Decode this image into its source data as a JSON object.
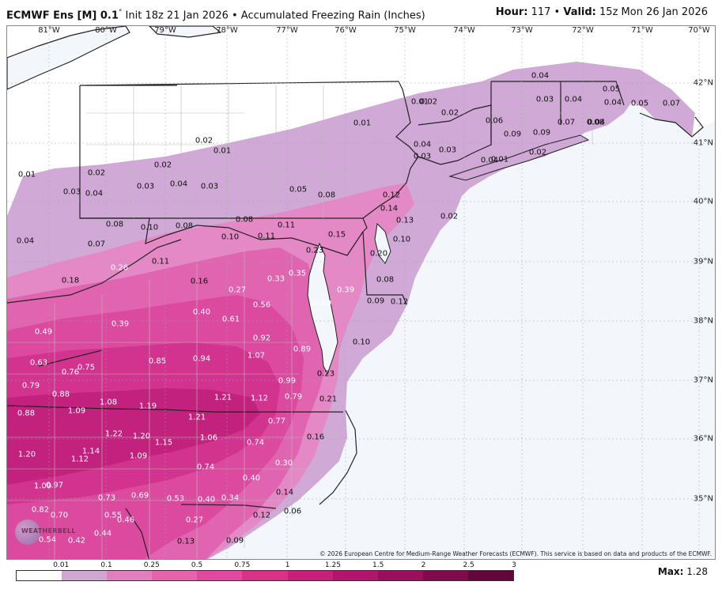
{
  "header": {
    "model": "ECMWF Ens [M] 0.1",
    "degree": "°",
    "init_text": " Init 18z 21 Jan 2026 • Accumulated Freezing Rain (Inches)",
    "hour_label": "Hour:",
    "hour_value": " 117 • ",
    "valid_label": "Valid:",
    "valid_value": " 15z Mon 26 Jan 2026"
  },
  "longitude_labels": [
    "81°W",
    "80°W",
    "79°W",
    "78°W",
    "77°W",
    "76°W",
    "75°W",
    "74°W",
    "73°W",
    "72°W",
    "71°W",
    "70°W"
  ],
  "latitude_labels": [
    "42°N",
    "41°N",
    "40°N",
    "39°N",
    "38°N",
    "37°N",
    "36°N",
    "35°N"
  ],
  "values": [
    "0.01",
    "0.02",
    "0.03",
    "0.04",
    "0.02",
    "0.02",
    "0.01",
    "0.03",
    "0.04",
    "0.03",
    "0.04",
    "0.03",
    "0.04",
    "0.05",
    "0.04",
    "0.05",
    "0.07",
    "0.06",
    "0.09",
    "0.09",
    "0.07",
    "0.08",
    "0.02",
    "0.01",
    "0.01",
    "0.02",
    "0.02",
    "0.04",
    "0.04",
    "0.03",
    "0.05",
    "0.08",
    "0.12",
    "0.14",
    "0.13",
    "0.02",
    "0.01",
    "0.03",
    "0.04",
    "0.08",
    "0.10",
    "0.08",
    "0.08",
    "0.11",
    "0.10",
    "0.11",
    "0.15",
    "0.23",
    "0.10",
    "0.20",
    "0.07",
    "0.04",
    "0.11",
    "0.26",
    "0.16",
    "0.35",
    "0.33",
    "0.39",
    "0.18",
    "0.27",
    "0.56",
    "0.60",
    "0.08",
    "0.09",
    "0.12",
    "0.49",
    "0.39",
    "0.40",
    "0.61",
    "0.92",
    "0.89",
    "0.10",
    "0.63",
    "0.76",
    "0.75",
    "0.85",
    "0.94",
    "1.07",
    "0.23",
    "0.79",
    "0.88",
    "0.99",
    "1.08",
    "1.19",
    "1.21",
    "1.12",
    "0.79",
    "0.21",
    "0.88",
    "1.09",
    "1.21",
    "0.77",
    "1.22",
    "1.20",
    "1.06",
    "0.74",
    "0.16",
    "1.20",
    "1.14",
    "1.12",
    "1.15",
    "1.09",
    "0.74",
    "0.30",
    "1.00",
    "0.97",
    "0.40",
    "0.73",
    "0.69",
    "0.53",
    "0.40",
    "0.34",
    "0.14",
    "0.82",
    "0.70",
    "0.55",
    "0.46",
    "0.42",
    "0.44",
    "0.27",
    "0.13",
    "0.09",
    "0.12",
    "0.06",
    "0.54"
  ],
  "copyright": "© 2026 European Centre for Medium-Range Weather Forecasts (ECMWF). This service is based on data and products of the ECMWF.",
  "logo_text": "WEATHERBELL",
  "legend": {
    "ticks": [
      "0.01",
      "0.1",
      "0.25",
      "0.5",
      "0.75",
      "1",
      "1.25",
      "1.5",
      "2",
      "2.5",
      "3"
    ],
    "colors": [
      "#ffffff",
      "#d0a6d3",
      "#e27fc0",
      "#e463ad",
      "#e0499f",
      "#d93088",
      "#c8207a",
      "#b3156e",
      "#9a0f5d",
      "#7f0a4c",
      "#61073b"
    ],
    "max_label": "Max:",
    "max_value": " 1.28"
  }
}
